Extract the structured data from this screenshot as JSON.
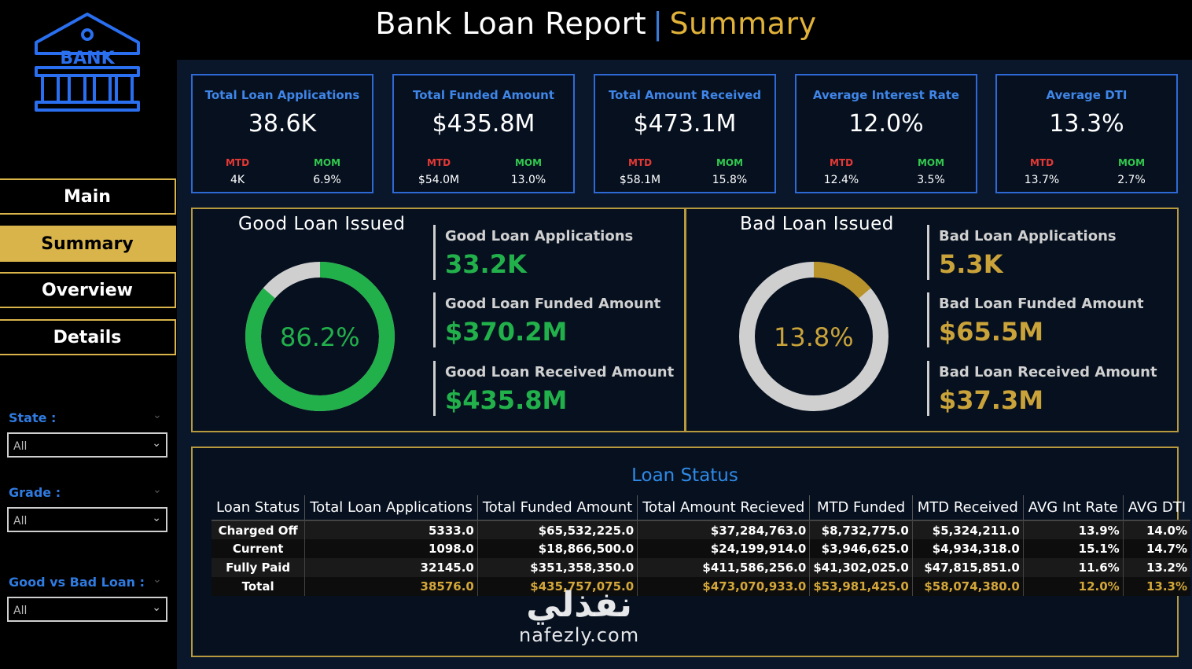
{
  "header": {
    "title_main": "Bank Loan Report",
    "separator": "|",
    "title_sub": "Summary"
  },
  "logo": {
    "text": "BANK",
    "icon": "bank-icon"
  },
  "nav": [
    {
      "label": "Main"
    },
    {
      "label": "Summary",
      "active": true
    },
    {
      "label": "Overview"
    },
    {
      "label": "Details"
    }
  ],
  "filters": [
    {
      "label": "State :",
      "value": "All"
    },
    {
      "label": "Grade :",
      "value": "All"
    },
    {
      "label": "Good vs Bad Loan :",
      "value": "All"
    }
  ],
  "kpis": [
    {
      "label": "Total Loan Applications",
      "value": "38.6K",
      "mtd_label": "MTD",
      "mom_label": "MOM",
      "mtd": "4K",
      "mom": "6.9%"
    },
    {
      "label": "Total Funded Amount",
      "value": "$435.8M",
      "mtd_label": "MTD",
      "mom_label": "MOM",
      "mtd": "$54.0M",
      "mom": "13.0%"
    },
    {
      "label": "Total Amount Received",
      "value": "$473.1M",
      "mtd_label": "MTD",
      "mom_label": "MOM",
      "mtd": "$58.1M",
      "mom": "15.8%"
    },
    {
      "label": "Average Interest Rate",
      "value": "12.0%",
      "mtd_label": "MTD",
      "mom_label": "MOM",
      "mtd": "12.4%",
      "mom": "3.5%"
    },
    {
      "label": "Average DTI",
      "value": "13.3%",
      "mtd_label": "MTD",
      "mom_label": "MOM",
      "mtd": "13.7%",
      "mom": "2.7%"
    }
  ],
  "good_loan": {
    "title": "Good Loan Issued",
    "percent_label": "86.2%",
    "percent": 0.862,
    "color": "#22b04b",
    "metrics": [
      {
        "label": "Good Loan Applications",
        "value": "33.2K"
      },
      {
        "label": "Good Loan Funded Amount",
        "value": "$370.2M"
      },
      {
        "label": "Good Loan Received Amount",
        "value": "$435.8M"
      }
    ]
  },
  "bad_loan": {
    "title": "Bad Loan Issued",
    "percent_label": "13.8%",
    "percent": 0.138,
    "color": "#b8922a",
    "metrics": [
      {
        "label": "Bad Loan Applications",
        "value": "5.3K"
      },
      {
        "label": "Bad Loan Funded Amount",
        "value": "$65.5M"
      },
      {
        "label": "Bad Loan Received Amount",
        "value": "$37.3M"
      }
    ]
  },
  "loan_status": {
    "title": "Loan Status",
    "columns": [
      "Loan Status",
      "Total Loan Applications",
      "Total Funded Amount",
      "Total Amount Recieved",
      "MTD Funded",
      "MTD Received",
      "AVG Int Rate",
      "AVG DTI"
    ],
    "rows": [
      [
        "Charged Off",
        "5333.0",
        "$65,532,225.0",
        "$37,284,763.0",
        "$8,732,775.0",
        "$5,324,211.0",
        "13.9%",
        "14.0%"
      ],
      [
        "Current",
        "1098.0",
        "$18,866,500.0",
        "$24,199,914.0",
        "$3,946,625.0",
        "$4,934,318.0",
        "15.1%",
        "14.7%"
      ],
      [
        "Fully Paid",
        "32145.0",
        "$351,358,350.0",
        "$411,586,256.0",
        "$41,302,025.0",
        "$47,815,851.0",
        "11.6%",
        "13.2%"
      ]
    ],
    "total": [
      "Total",
      "38576.0",
      "$435,757,075.0",
      "$473,070,933.0",
      "$53,981,425.0",
      "$58,074,380.0",
      "12.0%",
      "13.3%"
    ]
  },
  "watermark": {
    "arabic": "نفذلي",
    "latin": "nafezly.com"
  }
}
